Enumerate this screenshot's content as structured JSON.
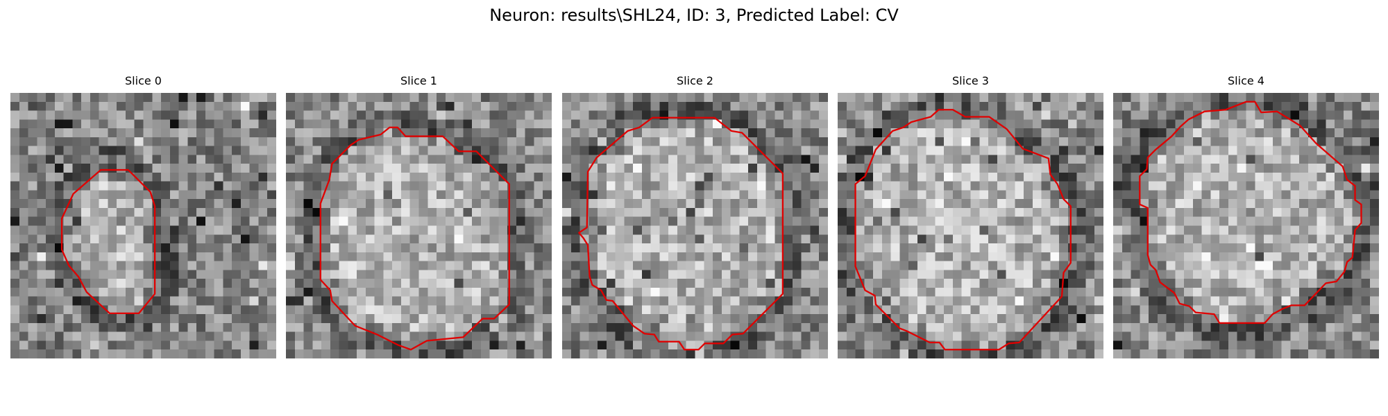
{
  "figure": {
    "title": "Neuron: results\\SHL24, ID: 3, Predicted Label: CV"
  },
  "colors": {
    "contour": "#e00000",
    "background": "#ffffff"
  },
  "slices": [
    {
      "title": "Slice 0"
    },
    {
      "title": "Slice 1"
    },
    {
      "title": "Slice 2"
    },
    {
      "title": "Slice 3"
    },
    {
      "title": "Slice 4"
    }
  ]
}
